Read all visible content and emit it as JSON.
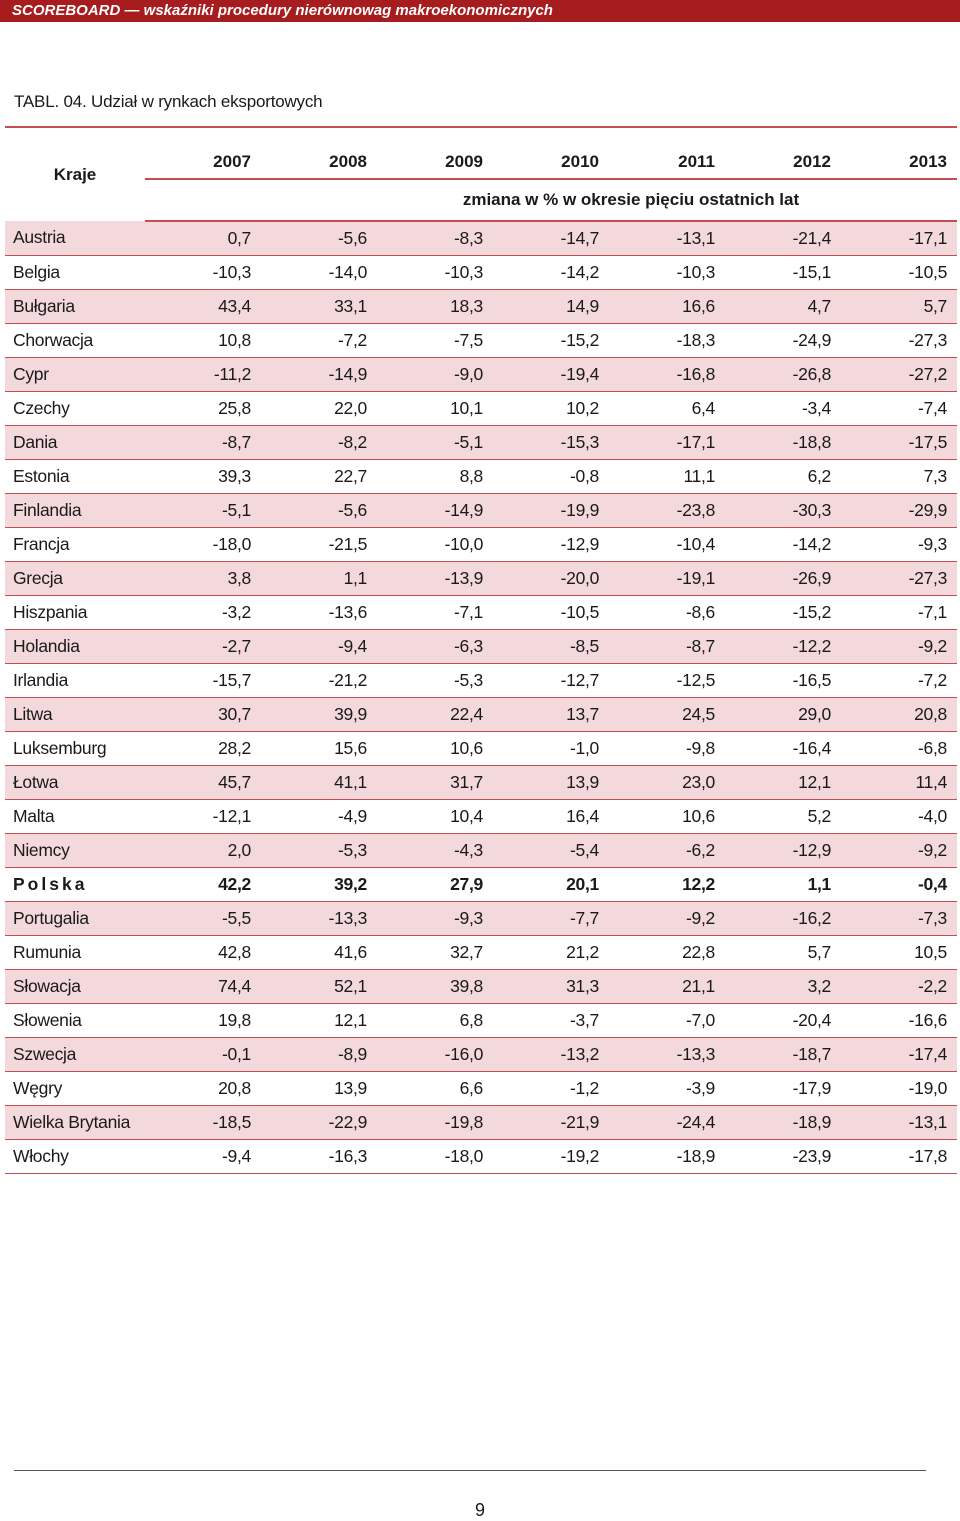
{
  "header": {
    "banner": "SCOREBOARD — wskaźniki procedury nierównowag makroekonomicznych"
  },
  "table": {
    "title": "TABL. 04. Udział w rynkach eksportowych",
    "country_header": "Kraje",
    "years": [
      "2007",
      "2008",
      "2009",
      "2010",
      "2011",
      "2012",
      "2013"
    ],
    "subheader": "zmiana w % w okresie pięciu ostatnich lat",
    "rows": [
      {
        "name": "Austria",
        "values": [
          "0,7",
          "-5,6",
          "-8,3",
          "-14,7",
          "-13,1",
          "-21,4",
          "-17,1"
        ]
      },
      {
        "name": "Belgia",
        "values": [
          "-10,3",
          "-14,0",
          "-10,3",
          "-14,2",
          "-10,3",
          "-15,1",
          "-10,5"
        ]
      },
      {
        "name": "Bułgaria",
        "values": [
          "43,4",
          "33,1",
          "18,3",
          "14,9",
          "16,6",
          "4,7",
          "5,7"
        ]
      },
      {
        "name": "Chorwacja",
        "values": [
          "10,8",
          "-7,2",
          "-7,5",
          "-15,2",
          "-18,3",
          "-24,9",
          "-27,3"
        ]
      },
      {
        "name": "Cypr",
        "values": [
          "-11,2",
          "-14,9",
          "-9,0",
          "-19,4",
          "-16,8",
          "-26,8",
          "-27,2"
        ]
      },
      {
        "name": "Czechy",
        "values": [
          "25,8",
          "22,0",
          "10,1",
          "10,2",
          "6,4",
          "-3,4",
          "-7,4"
        ]
      },
      {
        "name": "Dania",
        "values": [
          "-8,7",
          "-8,2",
          "-5,1",
          "-15,3",
          "-17,1",
          "-18,8",
          "-17,5"
        ]
      },
      {
        "name": "Estonia",
        "values": [
          "39,3",
          "22,7",
          "8,8",
          "-0,8",
          "11,1",
          "6,2",
          "7,3"
        ]
      },
      {
        "name": "Finlandia",
        "values": [
          "-5,1",
          "-5,6",
          "-14,9",
          "-19,9",
          "-23,8",
          "-30,3",
          "-29,9"
        ]
      },
      {
        "name": "Francja",
        "values": [
          "-18,0",
          "-21,5",
          "-10,0",
          "-12,9",
          "-10,4",
          "-14,2",
          "-9,3"
        ]
      },
      {
        "name": "Grecja",
        "values": [
          "3,8",
          "1,1",
          "-13,9",
          "-20,0",
          "-19,1",
          "-26,9",
          "-27,3"
        ]
      },
      {
        "name": "Hiszpania",
        "values": [
          "-3,2",
          "-13,6",
          "-7,1",
          "-10,5",
          "-8,6",
          "-15,2",
          "-7,1"
        ]
      },
      {
        "name": "Holandia",
        "values": [
          "-2,7",
          "-9,4",
          "-6,3",
          "-8,5",
          "-8,7",
          "-12,2",
          "-9,2"
        ]
      },
      {
        "name": "Irlandia",
        "values": [
          "-15,7",
          "-21,2",
          "-5,3",
          "-12,7",
          "-12,5",
          "-16,5",
          "-7,2"
        ]
      },
      {
        "name": "Litwa",
        "values": [
          "30,7",
          "39,9",
          "22,4",
          "13,7",
          "24,5",
          "29,0",
          "20,8"
        ]
      },
      {
        "name": "Luksemburg",
        "values": [
          "28,2",
          "15,6",
          "10,6",
          "-1,0",
          "-9,8",
          "-16,4",
          "-6,8"
        ]
      },
      {
        "name": "Łotwa",
        "values": [
          "45,7",
          "41,1",
          "31,7",
          "13,9",
          "23,0",
          "12,1",
          "11,4"
        ]
      },
      {
        "name": "Malta",
        "values": [
          "-12,1",
          "-4,9",
          "10,4",
          "16,4",
          "10,6",
          "5,2",
          "-4,0"
        ]
      },
      {
        "name": "Niemcy",
        "values": [
          "2,0",
          "-5,3",
          "-4,3",
          "-5,4",
          "-6,2",
          "-12,9",
          "-9,2"
        ]
      },
      {
        "name": "Polska",
        "values": [
          "42,2",
          "39,2",
          "27,9",
          "20,1",
          "12,2",
          "1,1",
          "-0,4"
        ],
        "bold": true
      },
      {
        "name": "Portugalia",
        "values": [
          "-5,5",
          "-13,3",
          "-9,3",
          "-7,7",
          "-9,2",
          "-16,2",
          "-7,3"
        ]
      },
      {
        "name": "Rumunia",
        "values": [
          "42,8",
          "41,6",
          "32,7",
          "21,2",
          "22,8",
          "5,7",
          "10,5"
        ]
      },
      {
        "name": "Słowacja",
        "values": [
          "74,4",
          "52,1",
          "39,8",
          "31,3",
          "21,1",
          "3,2",
          "-2,2"
        ]
      },
      {
        "name": "Słowenia",
        "values": [
          "19,8",
          "12,1",
          "6,8",
          "-3,7",
          "-7,0",
          "-20,4",
          "-16,6"
        ]
      },
      {
        "name": "Szwecja",
        "values": [
          "-0,1",
          "-8,9",
          "-16,0",
          "-13,2",
          "-13,3",
          "-18,7",
          "-17,4"
        ]
      },
      {
        "name": "Węgry",
        "values": [
          "20,8",
          "13,9",
          "6,6",
          "-1,2",
          "-3,9",
          "-17,9",
          "-19,0"
        ]
      },
      {
        "name": "Wielka Brytania",
        "values": [
          "-18,5",
          "-22,9",
          "-19,8",
          "-21,9",
          "-24,4",
          "-18,9",
          "-13,1"
        ]
      },
      {
        "name": "Włochy",
        "values": [
          "-9,4",
          "-16,3",
          "-18,0",
          "-19,2",
          "-18,9",
          "-23,9",
          "-17,8"
        ]
      }
    ]
  },
  "footer": {
    "page_number": "9"
  }
}
